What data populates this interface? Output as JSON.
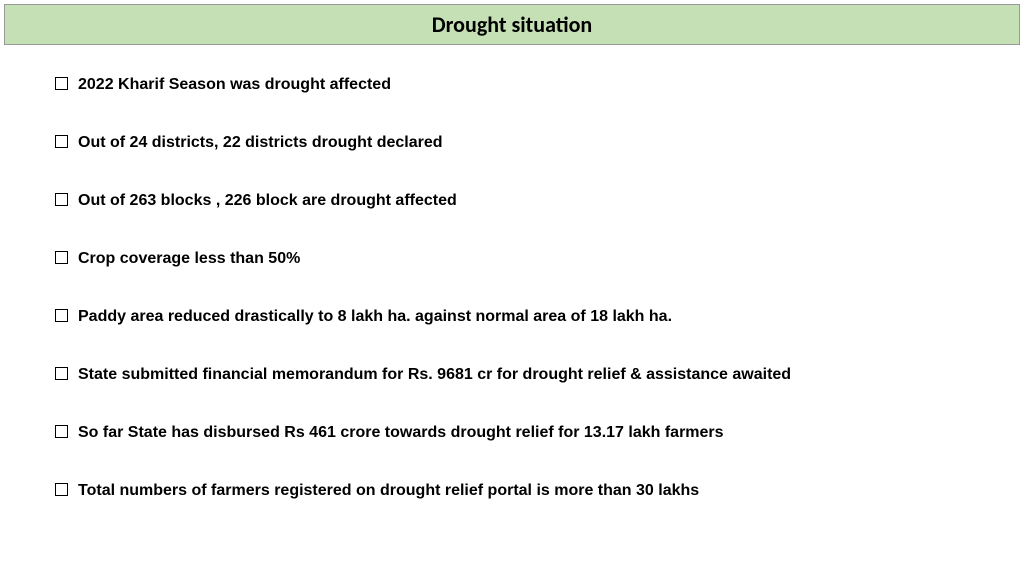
{
  "header": {
    "title": "Drought situation"
  },
  "bullets": {
    "items": [
      {
        "text": "2022 Kharif Season was drought affected"
      },
      {
        "text": "Out of 24 districts, 22 districts drought declared"
      },
      {
        "text": " Out of 263 blocks , 226 block are drought affected"
      },
      {
        "text": "Crop coverage less than 50%"
      },
      {
        "text": "Paddy area reduced drastically to 8 lakh ha. against normal area of 18 lakh ha."
      },
      {
        "text": "State submitted financial memorandum for Rs. 9681 cr for drought relief & assistance awaited"
      },
      {
        "text": "So far State has disbursed Rs 461 crore towards drought relief for 13.17 lakh farmers"
      },
      {
        "text": "Total numbers of farmers registered on drought relief portal is  more than 30 lakhs"
      }
    ]
  },
  "styling": {
    "header_bg": "#c5e0b4",
    "header_border": "#999999",
    "page_bg": "#ffffff",
    "text_color": "#000000",
    "title_fontsize": 22,
    "bullet_fontsize": 16,
    "bullet_spacing": 38
  }
}
